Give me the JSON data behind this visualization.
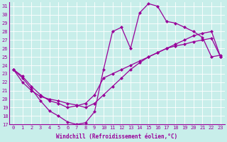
{
  "bg_color": "#c8eeea",
  "line_color": "#990099",
  "grid_color": "#ffffff",
  "xlim": [
    -0.5,
    23.5
  ],
  "ylim": [
    17,
    31.5
  ],
  "xticks": [
    0,
    1,
    2,
    3,
    4,
    5,
    6,
    7,
    8,
    9,
    10,
    11,
    12,
    13,
    14,
    15,
    16,
    17,
    18,
    19,
    20,
    21,
    22,
    23
  ],
  "yticks": [
    17,
    18,
    19,
    20,
    21,
    22,
    23,
    24,
    25,
    26,
    27,
    28,
    29,
    30,
    31
  ],
  "xlabel": "Windchill (Refroidissement éolien,°C)",
  "curve1_x": [
    0,
    1,
    2,
    3,
    4,
    5,
    6,
    7,
    8,
    9,
    10,
    11,
    12,
    13,
    14,
    15,
    16,
    17,
    18,
    19,
    20,
    21,
    22,
    23
  ],
  "curve1_y": [
    23.5,
    22.5,
    21.2,
    19.8,
    18.6,
    18.0,
    17.3,
    17.0,
    17.2,
    18.5,
    23.5,
    28.0,
    28.5,
    26.0,
    30.2,
    31.3,
    31.0,
    29.2,
    29.0,
    28.5,
    28.0,
    27.3,
    25.0,
    25.2
  ],
  "curve2_x": [
    0,
    1,
    2,
    3,
    4,
    5,
    6,
    7,
    8,
    9,
    10,
    11,
    12,
    13,
    14,
    15,
    16,
    17,
    18,
    19,
    20,
    21,
    22,
    23
  ],
  "curve2_y": [
    23.5,
    22.7,
    21.5,
    20.5,
    19.8,
    19.5,
    19.0,
    19.2,
    19.5,
    20.5,
    22.5,
    23.0,
    23.5,
    24.0,
    24.5,
    25.0,
    25.5,
    26.0,
    26.5,
    27.0,
    27.5,
    27.8,
    28.0,
    25.0
  ],
  "curve3_x": [
    0,
    1,
    2,
    3,
    4,
    5,
    6,
    7,
    8,
    9,
    10,
    11,
    12,
    13,
    14,
    15,
    16,
    17,
    18,
    19,
    20,
    21,
    22,
    23
  ],
  "curve3_y": [
    23.5,
    22.0,
    21.0,
    20.3,
    20.0,
    19.8,
    19.5,
    19.3,
    19.0,
    19.5,
    20.5,
    21.5,
    22.5,
    23.5,
    24.3,
    25.0,
    25.5,
    26.0,
    26.3,
    26.5,
    26.8,
    27.0,
    27.2,
    25.0
  ]
}
